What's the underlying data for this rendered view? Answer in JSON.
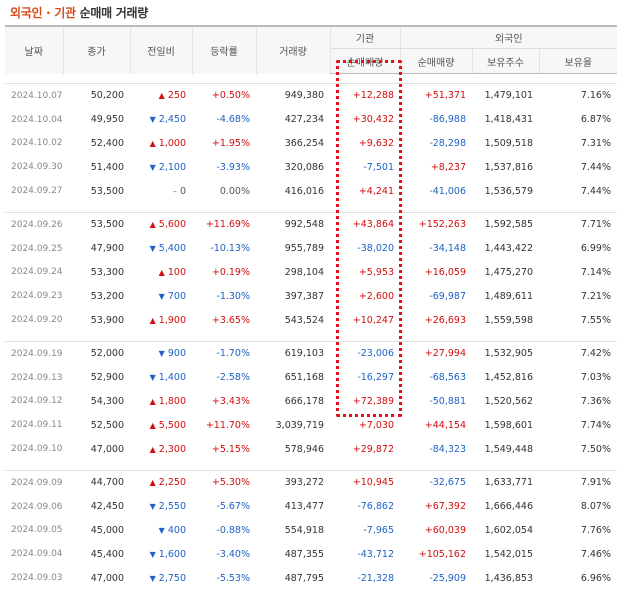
{
  "title": {
    "part1": "외국인 · 기관",
    "part2": "순매매 거래량"
  },
  "headers": {
    "date": "날짜",
    "close": "종가",
    "change": "전일비",
    "rate": "등락률",
    "volume": "거래량",
    "inst_group": "기관",
    "inst_net": "순매매량",
    "foreign_group": "외국인",
    "foreign_net": "순매매량",
    "foreign_hold": "보유주수",
    "foreign_ratio": "보유율"
  },
  "colors": {
    "up": "#d20e0e",
    "down": "#1e62c7",
    "highlight": "#e8101a"
  },
  "groups": [
    {
      "rows": [
        {
          "date": "2024.10.07",
          "close": "50,200",
          "dir": "up",
          "change": "250",
          "rate": "+0.50%",
          "volume": "949,380",
          "inst": "+12,288",
          "foreign": "+51,371",
          "hold": "1,479,101",
          "ratio": "7.16%"
        },
        {
          "date": "2024.10.04",
          "close": "49,950",
          "dir": "down",
          "change": "2,450",
          "rate": "-4.68%",
          "volume": "427,234",
          "inst": "+30,432",
          "foreign": "-86,988",
          "hold": "1,418,431",
          "ratio": "6.87%"
        },
        {
          "date": "2024.10.02",
          "close": "52,400",
          "dir": "up",
          "change": "1,000",
          "rate": "+1.95%",
          "volume": "366,254",
          "inst": "+9,632",
          "foreign": "-28,298",
          "hold": "1,509,518",
          "ratio": "7.31%"
        },
        {
          "date": "2024.09.30",
          "close": "51,400",
          "dir": "down",
          "change": "2,100",
          "rate": "-3.93%",
          "volume": "320,086",
          "inst": "-7,501",
          "foreign": "+8,237",
          "hold": "1,537,816",
          "ratio": "7.44%"
        },
        {
          "date": "2024.09.27",
          "close": "53,500",
          "dir": "flat",
          "change": "0",
          "rate": "0.00%",
          "volume": "416,016",
          "inst": "+4,241",
          "foreign": "-41,006",
          "hold": "1,536,579",
          "ratio": "7.44%"
        }
      ]
    },
    {
      "rows": [
        {
          "date": "2024.09.26",
          "close": "53,500",
          "dir": "up",
          "change": "5,600",
          "rate": "+11.69%",
          "volume": "992,548",
          "inst": "+43,864",
          "foreign": "+152,263",
          "hold": "1,592,585",
          "ratio": "7.71%"
        },
        {
          "date": "2024.09.25",
          "close": "47,900",
          "dir": "down",
          "change": "5,400",
          "rate": "-10.13%",
          "volume": "955,789",
          "inst": "-38,020",
          "foreign": "-34,148",
          "hold": "1,443,422",
          "ratio": "6.99%"
        },
        {
          "date": "2024.09.24",
          "close": "53,300",
          "dir": "up",
          "change": "100",
          "rate": "+0.19%",
          "volume": "298,104",
          "inst": "+5,953",
          "foreign": "+16,059",
          "hold": "1,475,270",
          "ratio": "7.14%"
        },
        {
          "date": "2024.09.23",
          "close": "53,200",
          "dir": "down",
          "change": "700",
          "rate": "-1.30%",
          "volume": "397,387",
          "inst": "+2,600",
          "foreign": "-69,987",
          "hold": "1,489,611",
          "ratio": "7.21%"
        },
        {
          "date": "2024.09.20",
          "close": "53,900",
          "dir": "up",
          "change": "1,900",
          "rate": "+3.65%",
          "volume": "543,524",
          "inst": "+10,247",
          "foreign": "+26,693",
          "hold": "1,559,598",
          "ratio": "7.55%"
        }
      ]
    },
    {
      "rows": [
        {
          "date": "2024.09.19",
          "close": "52,000",
          "dir": "down",
          "change": "900",
          "rate": "-1.70%",
          "volume": "619,103",
          "inst": "-23,006",
          "foreign": "+27,994",
          "hold": "1,532,905",
          "ratio": "7.42%"
        },
        {
          "date": "2024.09.13",
          "close": "52,900",
          "dir": "down",
          "change": "1,400",
          "rate": "-2.58%",
          "volume": "651,168",
          "inst": "-16,297",
          "foreign": "-68,563",
          "hold": "1,452,816",
          "ratio": "7.03%"
        },
        {
          "date": "2024.09.12",
          "close": "54,300",
          "dir": "up",
          "change": "1,800",
          "rate": "+3.43%",
          "volume": "666,178",
          "inst": "+72,389",
          "foreign": "-50,881",
          "hold": "1,520,562",
          "ratio": "7.36%"
        },
        {
          "date": "2024.09.11",
          "close": "52,500",
          "dir": "up",
          "change": "5,500",
          "rate": "+11.70%",
          "volume": "3,039,719",
          "inst": "+7,030",
          "foreign": "+44,154",
          "hold": "1,598,601",
          "ratio": "7.74%"
        },
        {
          "date": "2024.09.10",
          "close": "47,000",
          "dir": "up",
          "change": "2,300",
          "rate": "+5.15%",
          "volume": "578,946",
          "inst": "+29,872",
          "foreign": "-84,323",
          "hold": "1,549,448",
          "ratio": "7.50%"
        }
      ]
    },
    {
      "rows": [
        {
          "date": "2024.09.09",
          "close": "44,700",
          "dir": "up",
          "change": "2,250",
          "rate": "+5.30%",
          "volume": "393,272",
          "inst": "+10,945",
          "foreign": "-32,675",
          "hold": "1,633,771",
          "ratio": "7.91%"
        },
        {
          "date": "2024.09.06",
          "close": "42,450",
          "dir": "down",
          "change": "2,550",
          "rate": "-5.67%",
          "volume": "413,477",
          "inst": "-76,862",
          "foreign": "+67,392",
          "hold": "1,666,446",
          "ratio": "8.07%"
        },
        {
          "date": "2024.09.05",
          "close": "45,000",
          "dir": "down",
          "change": "400",
          "rate": "-0.88%",
          "volume": "554,918",
          "inst": "-7,965",
          "foreign": "+60,039",
          "hold": "1,602,054",
          "ratio": "7.76%"
        },
        {
          "date": "2024.09.04",
          "close": "45,400",
          "dir": "down",
          "change": "1,600",
          "rate": "-3.40%",
          "volume": "487,355",
          "inst": "-43,712",
          "foreign": "+105,162",
          "hold": "1,542,015",
          "ratio": "7.46%"
        },
        {
          "date": "2024.09.03",
          "close": "47,000",
          "dir": "down",
          "change": "2,750",
          "rate": "-5.53%",
          "volume": "487,795",
          "inst": "-21,328",
          "foreign": "-25,909",
          "hold": "1,436,853",
          "ratio": "6.96%"
        }
      ]
    }
  ]
}
